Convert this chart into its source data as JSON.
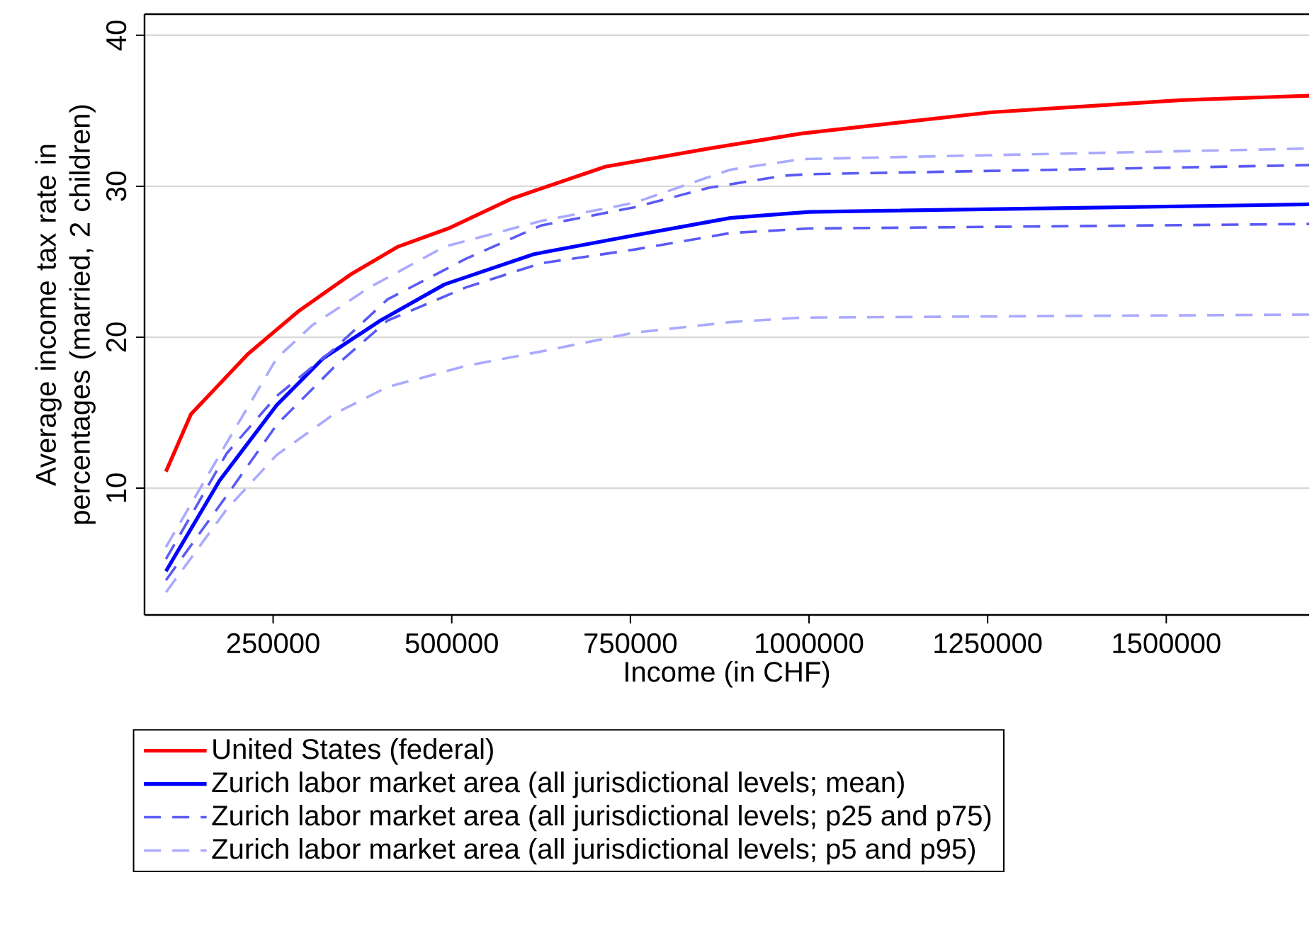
{
  "chart_data": {
    "type": "line",
    "xlabel": "Income (in CHF)",
    "ylabel": "Average income tax rate in percentages (married, 2 children)",
    "xlim": [
      70000,
      1700000
    ],
    "ylim": [
      1.6,
      41.4
    ],
    "xticks": [
      250000,
      500000,
      750000,
      1000000,
      1250000,
      1500000
    ],
    "yticks": [
      10,
      20,
      30,
      40
    ],
    "grid": "y",
    "legend": "bottom",
    "marker": "none",
    "series": [
      {
        "name": "United States (federal)",
        "color": "#ff0000",
        "line_style": "solid",
        "x": [
          100000,
          135000,
          175000,
          215000,
          255000,
          285000,
          360000,
          425000,
          495000,
          585000,
          715000,
          860000,
          990000,
          1255000,
          1520000,
          1700000
        ],
        "values": [
          11.1,
          14.9,
          16.9,
          18.9,
          20.5,
          21.7,
          24.2,
          26.0,
          27.2,
          29.2,
          31.3,
          32.5,
          33.5,
          34.9,
          35.7,
          36.0
        ]
      },
      {
        "name": "Zurich labor market area  (all jurisdictional levels; mean)",
        "color": "#0000ff",
        "line_style": "solid",
        "x": [
          100000,
          175000,
          255000,
          320000,
          400000,
          490000,
          615000,
          750000,
          890000,
          1000000,
          1700000
        ],
        "values": [
          4.5,
          10.5,
          15.5,
          18.6,
          21.1,
          23.5,
          25.5,
          26.7,
          27.9,
          28.3,
          28.8
        ]
      },
      {
        "name": "Zurich labor market area  (all jurisdictional levels; p25 and p75)",
        "color": "#5a5af5",
        "line_style": "dashed",
        "x": [
          100000,
          185000,
          255000,
          335000,
          410000,
          520000,
          625000,
          755000,
          860000,
          965000,
          1000000,
          1700000
        ],
        "values": [
          5.3,
          12.3,
          16.1,
          19.2,
          22.5,
          25.2,
          27.4,
          28.6,
          29.9,
          30.7,
          30.8,
          31.4
        ]
      },
      {
        "color": "#5a5af5",
        "line_style": "dashed",
        "x": [
          100000,
          185000,
          255000,
          335000,
          410000,
          520000,
          625000,
          755000,
          890000,
          1000000,
          1700000
        ],
        "values": [
          3.9,
          9.5,
          14.2,
          18.0,
          21.1,
          23.3,
          24.9,
          25.8,
          26.9,
          27.2,
          27.5
        ]
      },
      {
        "name": "Zurich labor market area  (all jurisdictional levels; p5 and p95)",
        "color": "#aaaaff",
        "line_style": "dashed",
        "x": [
          100000,
          185000,
          255000,
          305000,
          385000,
          490000,
          625000,
          755000,
          890000,
          990000,
          1700000
        ],
        "values": [
          6.1,
          13.0,
          18.6,
          20.8,
          23.3,
          26.0,
          27.7,
          28.9,
          31.1,
          31.8,
          32.5
        ]
      },
      {
        "color": "#aaaaff",
        "line_style": "dashed",
        "x": [
          100000,
          185000,
          255000,
          335000,
          410000,
          520000,
          630000,
          755000,
          890000,
          990000,
          1700000
        ],
        "values": [
          3.1,
          8.6,
          12.2,
          14.9,
          16.7,
          18.1,
          19.1,
          20.3,
          21.0,
          21.3,
          21.5
        ]
      }
    ]
  }
}
